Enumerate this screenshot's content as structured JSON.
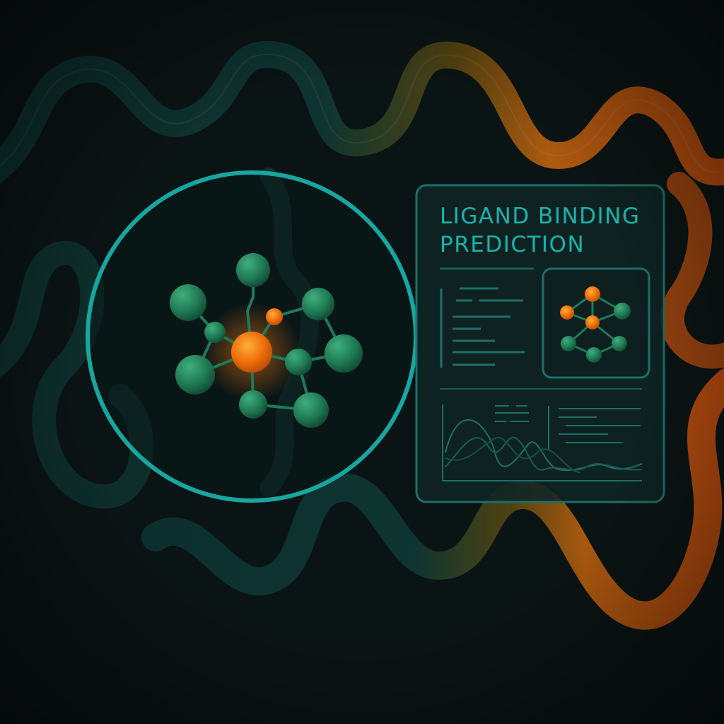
{
  "panel": {
    "title": "LIGAND BINDING\nPREDICTION"
  },
  "colors": {
    "background": "#0b1414",
    "accent_teal": "#19b3ad",
    "ribbon_teal": "#0f3a36",
    "ribbon_orange": "#d66a12",
    "atom_green": "#1f7a55",
    "atom_orange": "#f0820f",
    "panel_fill": "#0f2424"
  },
  "icons": {
    "ribbon": "protein-ribbon",
    "molecule": "molecule-graph",
    "lens": "magnifier-circle",
    "chart": "line-chart"
  }
}
